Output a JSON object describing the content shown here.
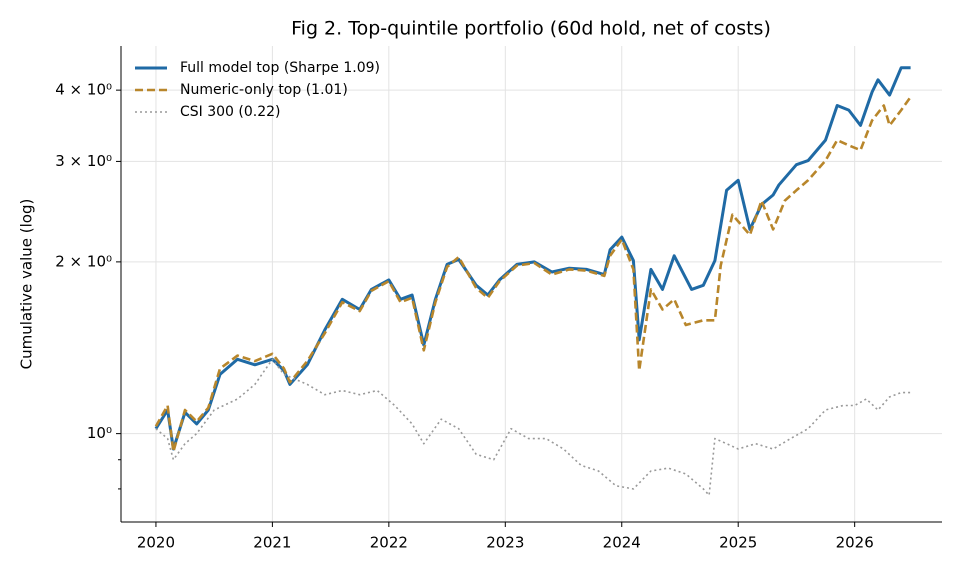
{
  "chart_data": {
    "type": "line",
    "title": "Fig 2. Top-quintile portfolio (60d hold, net of costs)",
    "y_label": "Cumulative value (log)",
    "log_y": true,
    "grid": true,
    "legend": "upper-left",
    "xlim": [
      2019.7,
      2026.75
    ],
    "xticks": [
      2020,
      2021,
      2022,
      2023,
      2024,
      2025,
      2026
    ],
    "ylim": [
      0.7,
      4.78
    ],
    "yticks": [
      {
        "value": 1,
        "label": "10⁰"
      },
      {
        "value": 2,
        "label": "2 × 10⁰"
      },
      {
        "value": 3,
        "label": "3 × 10⁰"
      },
      {
        "value": 4,
        "label": "4 × 10⁰"
      }
    ],
    "yminorticks": [
      0.8,
      0.9
    ],
    "series": [
      {
        "name": "Full model top (Sharpe 1.09)",
        "color": "#1f6aa5",
        "style": "solid",
        "x": [
          2020.0,
          2020.1,
          2020.15,
          2020.25,
          2020.35,
          2020.45,
          2020.55,
          2020.7,
          2020.85,
          2021.0,
          2021.1,
          2021.15,
          2021.3,
          2021.45,
          2021.6,
          2021.75,
          2021.85,
          2022.0,
          2022.1,
          2022.2,
          2022.3,
          2022.4,
          2022.5,
          2022.6,
          2022.75,
          2022.85,
          2022.95,
          2023.1,
          2023.25,
          2023.4,
          2023.55,
          2023.7,
          2023.85,
          2023.9,
          2024.0,
          2024.1,
          2024.15,
          2024.25,
          2024.35,
          2024.45,
          2024.6,
          2024.7,
          2024.8,
          2024.9,
          2025.0,
          2025.1,
          2025.2,
          2025.3,
          2025.35,
          2025.5,
          2025.6,
          2025.75,
          2025.85,
          2025.95,
          2026.05,
          2026.15,
          2026.2,
          2026.3,
          2026.4,
          2026.48
        ],
        "values": [
          1.02,
          1.1,
          0.94,
          1.09,
          1.04,
          1.1,
          1.27,
          1.35,
          1.32,
          1.35,
          1.29,
          1.22,
          1.32,
          1.52,
          1.72,
          1.65,
          1.79,
          1.86,
          1.72,
          1.75,
          1.43,
          1.72,
          1.98,
          2.02,
          1.82,
          1.75,
          1.86,
          1.98,
          2.0,
          1.92,
          1.95,
          1.94,
          1.9,
          2.1,
          2.21,
          2.01,
          1.46,
          1.94,
          1.79,
          2.05,
          1.79,
          1.82,
          2.01,
          2.67,
          2.78,
          2.28,
          2.52,
          2.62,
          2.73,
          2.96,
          3.01,
          3.27,
          3.76,
          3.69,
          3.47,
          3.97,
          4.17,
          3.92,
          4.38,
          4.38
        ]
      },
      {
        "name": "Numeric-only top (1.01)",
        "color": "#b8862b",
        "style": "dashed",
        "x": [
          2020.0,
          2020.1,
          2020.15,
          2020.25,
          2020.35,
          2020.45,
          2020.55,
          2020.7,
          2020.85,
          2021.0,
          2021.1,
          2021.15,
          2021.3,
          2021.45,
          2021.6,
          2021.75,
          2021.85,
          2022.0,
          2022.1,
          2022.2,
          2022.3,
          2022.4,
          2022.5,
          2022.6,
          2022.75,
          2022.85,
          2022.95,
          2023.1,
          2023.25,
          2023.4,
          2023.55,
          2023.7,
          2023.85,
          2023.9,
          2024.0,
          2024.1,
          2024.15,
          2024.25,
          2024.35,
          2024.45,
          2024.55,
          2024.7,
          2024.8,
          2024.85,
          2024.95,
          2025.1,
          2025.2,
          2025.3,
          2025.4,
          2025.5,
          2025.6,
          2025.75,
          2025.85,
          2025.95,
          2026.05,
          2026.15,
          2026.25,
          2026.3,
          2026.4,
          2026.48
        ],
        "values": [
          1.03,
          1.12,
          0.93,
          1.1,
          1.05,
          1.11,
          1.3,
          1.37,
          1.34,
          1.38,
          1.3,
          1.23,
          1.34,
          1.5,
          1.7,
          1.64,
          1.78,
          1.85,
          1.7,
          1.73,
          1.4,
          1.7,
          1.96,
          2.04,
          1.8,
          1.73,
          1.85,
          1.97,
          1.99,
          1.9,
          1.94,
          1.93,
          1.89,
          2.05,
          2.19,
          1.94,
          1.29,
          1.79,
          1.65,
          1.72,
          1.55,
          1.58,
          1.58,
          1.97,
          2.42,
          2.23,
          2.56,
          2.28,
          2.56,
          2.67,
          2.78,
          3.01,
          3.27,
          3.2,
          3.14,
          3.54,
          3.76,
          3.47,
          3.69,
          3.89
        ]
      },
      {
        "name": "CSI 300 (0.22)",
        "color": "#999999",
        "style": "dotted",
        "x": [
          2020.0,
          2020.1,
          2020.15,
          2020.25,
          2020.35,
          2020.5,
          2020.7,
          2020.85,
          2021.0,
          2021.1,
          2021.3,
          2021.45,
          2021.6,
          2021.75,
          2021.9,
          2022.05,
          2022.2,
          2022.3,
          2022.45,
          2022.6,
          2022.75,
          2022.9,
          2023.05,
          2023.2,
          2023.35,
          2023.5,
          2023.65,
          2023.8,
          2023.95,
          2024.1,
          2024.25,
          2024.4,
          2024.55,
          2024.7,
          2024.75,
          2024.8,
          2024.9,
          2025.0,
          2025.15,
          2025.3,
          2025.45,
          2025.6,
          2025.75,
          2025.9,
          2026.0,
          2026.1,
          2026.2,
          2026.3,
          2026.4,
          2026.48
        ],
        "values": [
          1.02,
          0.98,
          0.9,
          0.96,
          1.0,
          1.1,
          1.15,
          1.22,
          1.35,
          1.27,
          1.22,
          1.17,
          1.19,
          1.17,
          1.19,
          1.12,
          1.04,
          0.96,
          1.06,
          1.02,
          0.92,
          0.9,
          1.02,
          0.98,
          0.98,
          0.94,
          0.88,
          0.86,
          0.81,
          0.8,
          0.86,
          0.87,
          0.85,
          0.8,
          0.78,
          0.98,
          0.96,
          0.94,
          0.96,
          0.94,
          0.98,
          1.02,
          1.1,
          1.12,
          1.12,
          1.15,
          1.1,
          1.16,
          1.18,
          1.18
        ]
      }
    ]
  }
}
